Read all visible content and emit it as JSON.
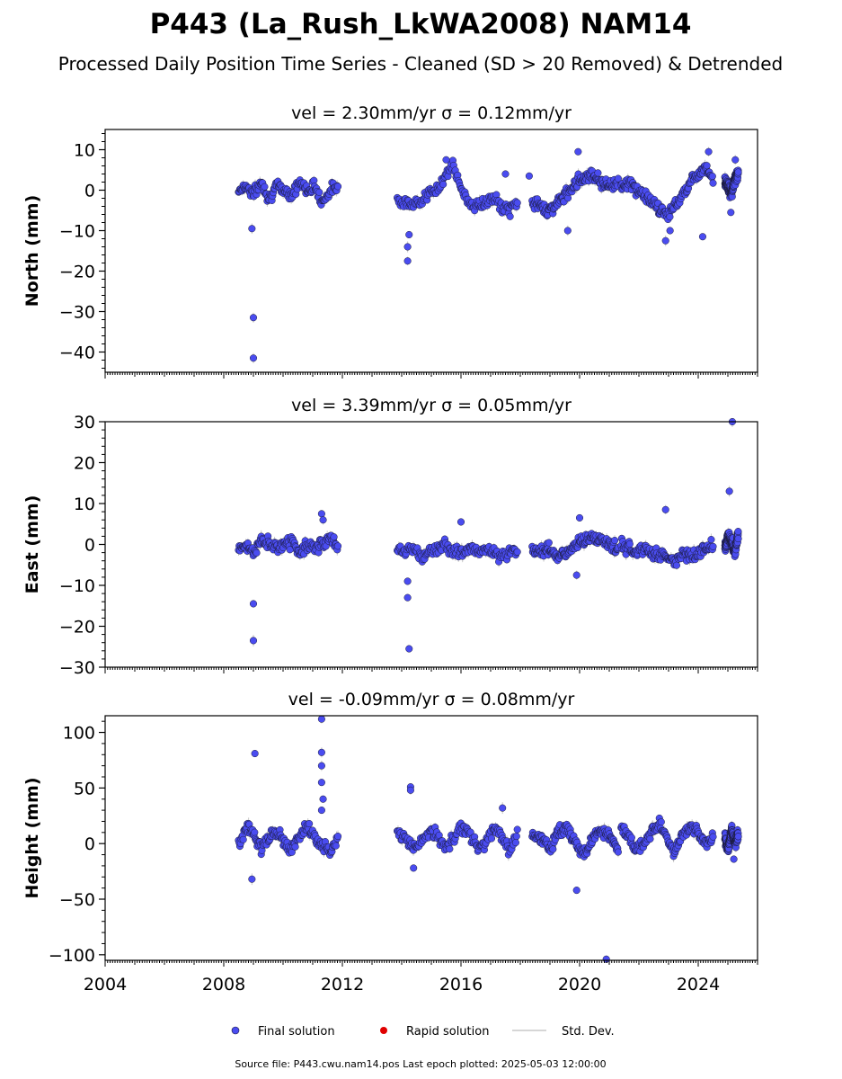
{
  "title": "P443 (La_Rush_LkWA2008) NAM14",
  "subtitle": "Processed Daily Position Time Series - Cleaned (SD > 20 Removed) & Detrended",
  "source_note": "Source file: P443.cwu.nam14.pos  Last epoch plotted: 2025-05-03 12:00:00",
  "legend": {
    "final": "Final solution",
    "rapid": "Rapid solution",
    "std": "Std. Dev."
  },
  "colors": {
    "final": "#4a4cf0",
    "final_edge": "#1a1a3a",
    "rapid": "#e00000",
    "stddev": "#c8c8c8"
  },
  "chart_data": [
    {
      "type": "scatter",
      "panel_title": "vel = 2.30mm/yr   σ = 0.12mm/yr",
      "ylabel": "North (mm)",
      "xlim": [
        2004,
        2026
      ],
      "ylim": [
        -45,
        15
      ],
      "yticks": [
        -40,
        -30,
        -20,
        -10,
        0,
        10
      ],
      "tick_labels": [
        "−40",
        "−30",
        "−20",
        "−10",
        "0",
        "10"
      ],
      "segments": [
        {
          "from": 2008.5,
          "to": 2011.85,
          "values": [
            0,
            1,
            -1,
            2,
            -2,
            1,
            0,
            -1,
            2,
            0,
            1,
            -3,
            0,
            1
          ]
        },
        {
          "from": 2013.85,
          "to": 2017.9,
          "values": [
            -2,
            -3,
            -4,
            -2,
            -1,
            0,
            4,
            6,
            0,
            -3,
            -4,
            -3,
            -2,
            -4,
            -5,
            -3
          ]
        },
        {
          "from": 2018.4,
          "to": 2021.3,
          "values": [
            -3,
            -4,
            -5,
            -3,
            -1,
            2,
            3,
            4,
            2,
            1,
            2
          ]
        },
        {
          "from": 2021.4,
          "to": 2024.5,
          "values": [
            1,
            2,
            0,
            -1,
            -3,
            -5,
            -6,
            -4,
            -1,
            2,
            4,
            6,
            3
          ]
        },
        {
          "from": 2024.9,
          "to": 2025.35,
          "values": [
            2,
            1,
            -1,
            3,
            4
          ]
        }
      ],
      "outliers": [
        [
          2008.95,
          -9.5
        ],
        [
          2009.0,
          -31.5
        ],
        [
          2009.0,
          -41.5
        ],
        [
          2014.2,
          -17.5
        ],
        [
          2014.2,
          -14
        ],
        [
          2014.25,
          -11
        ],
        [
          2015.5,
          7.5
        ],
        [
          2017.5,
          4
        ],
        [
          2018.3,
          3.5
        ],
        [
          2019.6,
          -10
        ],
        [
          2019.95,
          9.5
        ],
        [
          2022.9,
          -12.5
        ],
        [
          2023.05,
          -10
        ],
        [
          2024.15,
          -11.5
        ],
        [
          2024.35,
          9.5
        ],
        [
          2025.1,
          -5.5
        ],
        [
          2025.25,
          7.5
        ]
      ]
    },
    {
      "type": "scatter",
      "panel_title": "vel = 3.39mm/yr   σ = 0.05mm/yr",
      "ylabel": "East (mm)",
      "xlim": [
        2004,
        2026
      ],
      "ylim": [
        -30,
        30
      ],
      "yticks": [
        -30,
        -20,
        -10,
        0,
        10,
        20,
        30
      ],
      "tick_labels": [
        "−30",
        "−20",
        "−10",
        "0",
        "10",
        "20",
        "30"
      ],
      "segments": [
        {
          "from": 2008.5,
          "to": 2011.85,
          "values": [
            -1,
            0,
            -2,
            1,
            0,
            -1,
            0,
            1,
            -2,
            0,
            -1,
            0,
            2,
            -1
          ]
        },
        {
          "from": 2013.85,
          "to": 2017.9,
          "values": [
            -1,
            -2,
            -1,
            -3,
            -2,
            -1,
            0,
            -1,
            -2,
            -1,
            -2,
            -1,
            -2,
            -3,
            -2,
            -1
          ]
        },
        {
          "from": 2018.4,
          "to": 2021.3,
          "values": [
            -1,
            -2,
            -1,
            -3,
            -2,
            0,
            1,
            2,
            1,
            0,
            -1
          ]
        },
        {
          "from": 2021.4,
          "to": 2024.5,
          "values": [
            0,
            -1,
            -2,
            -1,
            -2,
            -3,
            -3,
            -4,
            -2,
            -3,
            -2,
            -1,
            0
          ]
        },
        {
          "from": 2024.9,
          "to": 2025.35,
          "values": [
            -1,
            2,
            1,
            -2,
            3
          ]
        }
      ],
      "outliers": [
        [
          2009.0,
          -14.5
        ],
        [
          2009.0,
          -23.5
        ],
        [
          2011.3,
          7.5
        ],
        [
          2011.35,
          6
        ],
        [
          2014.2,
          -13
        ],
        [
          2014.25,
          -25.5
        ],
        [
          2014.2,
          -9
        ],
        [
          2016.0,
          5.5
        ],
        [
          2020.0,
          6.5
        ],
        [
          2019.9,
          -7.5
        ],
        [
          2022.9,
          8.5
        ],
        [
          2025.05,
          13
        ],
        [
          2025.15,
          30
        ]
      ]
    },
    {
      "type": "scatter",
      "panel_title": "vel = -0.09mm/yr   σ = 0.08mm/yr",
      "ylabel": "Height (mm)",
      "xlim": [
        2004,
        2026
      ],
      "ylim": [
        -105,
        115
      ],
      "yticks": [
        -100,
        -50,
        0,
        50,
        100
      ],
      "tick_labels": [
        "−100",
        "−50",
        "0",
        "50",
        "100"
      ],
      "segments": [
        {
          "from": 2008.5,
          "to": 2011.85,
          "values": [
            0,
            15,
            10,
            -5,
            5,
            12,
            0,
            -5,
            8,
            14,
            5,
            -2,
            -10,
            5
          ]
        },
        {
          "from": 2013.85,
          "to": 2017.9,
          "values": [
            10,
            5,
            -5,
            0,
            12,
            8,
            -4,
            5,
            15,
            10,
            -5,
            0,
            14,
            6,
            -8,
            10
          ]
        },
        {
          "from": 2018.4,
          "to": 2021.3,
          "values": [
            8,
            5,
            -5,
            10,
            15,
            0,
            -10,
            5,
            12,
            8,
            -5
          ]
        },
        {
          "from": 2021.4,
          "to": 2024.5,
          "values": [
            15,
            5,
            -5,
            0,
            10,
            20,
            5,
            -10,
            8,
            15,
            10,
            0,
            5
          ]
        },
        {
          "from": 2024.9,
          "to": 2025.35,
          "values": [
            5,
            -5,
            12,
            0,
            8
          ]
        }
      ],
      "outliers": [
        [
          2009.05,
          81
        ],
        [
          2008.95,
          -32
        ],
        [
          2011.3,
          112
        ],
        [
          2011.3,
          82
        ],
        [
          2011.3,
          70
        ],
        [
          2011.3,
          55
        ],
        [
          2011.35,
          40
        ],
        [
          2011.3,
          30
        ],
        [
          2014.3,
          51
        ],
        [
          2014.3,
          48
        ],
        [
          2014.4,
          -22
        ],
        [
          2017.4,
          32
        ],
        [
          2019.9,
          -42
        ],
        [
          2020.9,
          -104
        ],
        [
          2025.2,
          -14
        ]
      ]
    }
  ],
  "x_tick_labels": [
    "2004",
    "2008",
    "2012",
    "2016",
    "2020",
    "2024"
  ]
}
